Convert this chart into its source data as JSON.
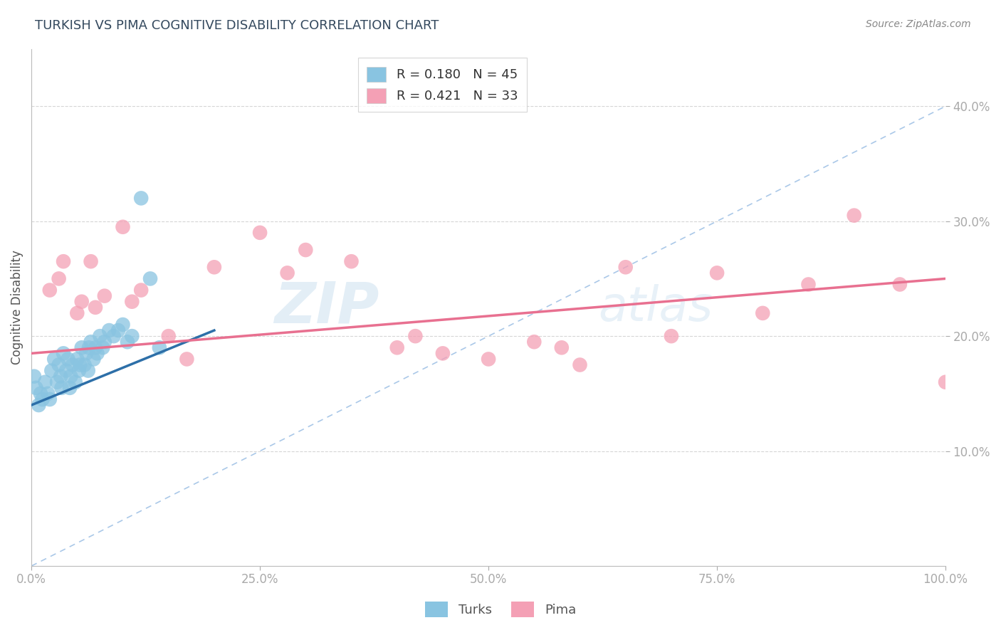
{
  "title": "TURKISH VS PIMA COGNITIVE DISABILITY CORRELATION CHART",
  "source_text": "Source: ZipAtlas.com",
  "ylabel": "Cognitive Disability",
  "title_color": "#34495e",
  "title_fontsize": 13,
  "watermark_line1": "ZIP",
  "watermark_line2": "atlas",
  "legend_r1": "R = 0.180",
  "legend_n1": "N = 45",
  "legend_r2": "R = 0.421",
  "legend_n2": "N = 33",
  "blue_color": "#89c4e1",
  "pink_color": "#f4a0b5",
  "blue_line_color": "#2d6fa8",
  "pink_line_color": "#e87090",
  "dashed_line_color": "#aac8e8",
  "grid_color": "#cccccc",
  "axis_label_color": "#4472c4",
  "turks_x": [
    0.3,
    0.5,
    0.8,
    1.0,
    1.2,
    1.5,
    1.8,
    2.0,
    2.2,
    2.5,
    2.8,
    3.0,
    3.2,
    3.5,
    3.8,
    4.0,
    4.2,
    4.5,
    4.8,
    5.0,
    5.2,
    5.5,
    5.8,
    6.0,
    6.2,
    6.5,
    6.8,
    7.0,
    7.2,
    7.5,
    7.8,
    8.0,
    8.5,
    9.0,
    9.5,
    10.0,
    10.5,
    11.0,
    12.0,
    13.0,
    14.0,
    3.3,
    4.3,
    5.3,
    6.3
  ],
  "turks_y": [
    16.5,
    15.5,
    14.0,
    15.0,
    14.5,
    16.0,
    15.0,
    14.5,
    17.0,
    18.0,
    16.0,
    17.5,
    16.5,
    18.5,
    17.0,
    18.0,
    15.5,
    17.5,
    16.0,
    18.0,
    17.0,
    19.0,
    17.5,
    18.5,
    17.0,
    19.5,
    18.0,
    19.0,
    18.5,
    20.0,
    19.0,
    19.5,
    20.5,
    20.0,
    20.5,
    21.0,
    19.5,
    20.0,
    32.0,
    25.0,
    19.0,
    15.5,
    16.5,
    17.5,
    19.0
  ],
  "pima_x": [
    2.0,
    3.5,
    5.0,
    6.5,
    8.0,
    10.0,
    12.0,
    15.0,
    20.0,
    25.0,
    30.0,
    35.0,
    40.0,
    45.0,
    50.0,
    55.0,
    60.0,
    65.0,
    70.0,
    75.0,
    80.0,
    85.0,
    90.0,
    95.0,
    100.0,
    3.0,
    5.5,
    7.0,
    11.0,
    17.0,
    28.0,
    42.0,
    58.0
  ],
  "pima_y": [
    24.0,
    26.5,
    22.0,
    26.5,
    23.5,
    29.5,
    24.0,
    20.0,
    26.0,
    29.0,
    27.5,
    26.5,
    19.0,
    18.5,
    18.0,
    19.5,
    17.5,
    26.0,
    20.0,
    25.5,
    22.0,
    24.5,
    30.5,
    24.5,
    16.0,
    25.0,
    23.0,
    22.5,
    23.0,
    18.0,
    25.5,
    20.0,
    19.0
  ],
  "xlim": [
    0,
    100
  ],
  "ylim": [
    0,
    45
  ],
  "yticks": [
    10,
    20,
    30,
    40
  ],
  "ytick_labels": [
    "10.0%",
    "20.0%",
    "30.0%",
    "40.0%"
  ],
  "xticks": [
    0,
    25,
    50,
    75,
    100
  ],
  "xtick_labels": [
    "0.0%",
    "25.0%",
    "50.0%",
    "75.0%",
    "100.0%"
  ],
  "blue_reg_x0": 0,
  "blue_reg_y0": 14.0,
  "blue_reg_x1": 20,
  "blue_reg_y1": 20.5,
  "pink_reg_x0": 0,
  "pink_reg_y0": 18.5,
  "pink_reg_x1": 100,
  "pink_reg_y1": 25.0,
  "diag_x0": 0,
  "diag_y0": 0,
  "diag_x1": 100,
  "diag_y1": 40
}
